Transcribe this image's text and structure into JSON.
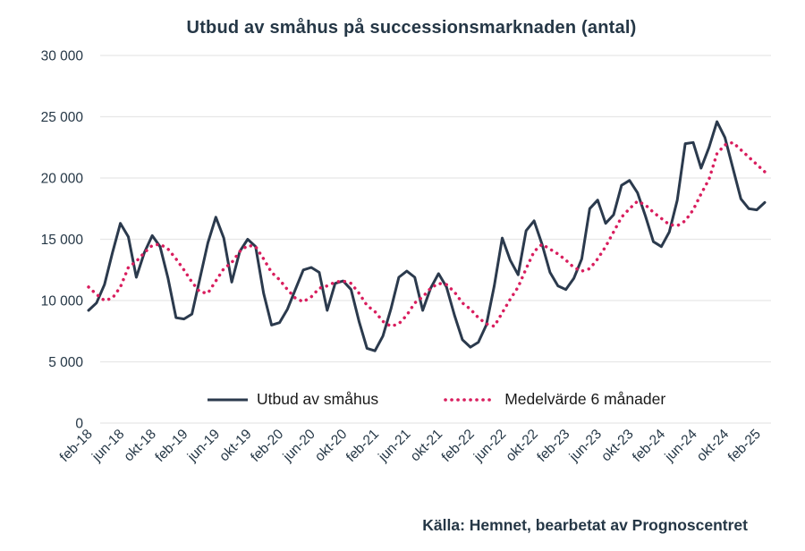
{
  "title": "Utbud av småhus på successionsmarknaden (antal)",
  "source": "Källa: Hemnet, bearbetat av Prognoscentret",
  "colors": {
    "line": "#2b3a4d",
    "average": "#d91e5e",
    "grid": "#e7e7e7",
    "axis_text": "#253746",
    "legend_text": "#1a1a1a",
    "background": "#ffffff"
  },
  "legend": {
    "items": [
      {
        "label": "Utbud av småhus",
        "marker": "solid-line"
      },
      {
        "label": "Medelvärde 6 månader",
        "marker": "dotted-line"
      }
    ]
  },
  "chart_data": {
    "type": "line",
    "title": "Utbud av småhus på successionsmarknaden (antal)",
    "xlabel": "",
    "ylabel": "",
    "ylim": [
      0,
      30000
    ],
    "grid": "horizontal",
    "legend_position": "bottom",
    "x_tick_every": 4,
    "x_tick_labels": [
      "feb-18",
      "jun-18",
      "okt-18",
      "feb-19",
      "jun-19",
      "okt-19",
      "feb-20",
      "jun-20",
      "okt-20",
      "feb-21",
      "jun-21",
      "okt-21",
      "feb-22",
      "jun-22",
      "okt-22",
      "feb-23",
      "jun-23",
      "okt-23",
      "feb-24",
      "jun-24",
      "okt-24",
      "feb-25"
    ],
    "y_ticks": [
      0,
      5000,
      10000,
      15000,
      20000,
      25000,
      30000
    ],
    "y_tick_labels": [
      "0",
      "5 000",
      "10 000",
      "15 000",
      "20 000",
      "25 000",
      "30 000"
    ],
    "months": [
      "feb-18",
      "mar-18",
      "apr-18",
      "maj-18",
      "jun-18",
      "jul-18",
      "aug-18",
      "sep-18",
      "okt-18",
      "nov-18",
      "dec-18",
      "jan-19",
      "feb-19",
      "mar-19",
      "apr-19",
      "maj-19",
      "jun-19",
      "jul-19",
      "aug-19",
      "sep-19",
      "okt-19",
      "nov-19",
      "dec-19",
      "jan-20",
      "feb-20",
      "mar-20",
      "apr-20",
      "maj-20",
      "jun-20",
      "jul-20",
      "aug-20",
      "sep-20",
      "okt-20",
      "nov-20",
      "dec-20",
      "jan-21",
      "feb-21",
      "mar-21",
      "apr-21",
      "maj-21",
      "jun-21",
      "jul-21",
      "aug-21",
      "sep-21",
      "okt-21",
      "nov-21",
      "dec-21",
      "jan-22",
      "feb-22",
      "mar-22",
      "apr-22",
      "maj-22",
      "jun-22",
      "jul-22",
      "aug-22",
      "sep-22",
      "okt-22",
      "nov-22",
      "dec-22",
      "jan-23",
      "feb-23",
      "mar-23",
      "apr-23",
      "maj-23",
      "jun-23",
      "jul-23",
      "aug-23",
      "sep-23",
      "okt-23",
      "nov-23",
      "dec-23",
      "jan-24",
      "feb-24",
      "mar-24",
      "apr-24",
      "maj-24",
      "jun-24",
      "jul-24",
      "aug-24",
      "sep-24",
      "okt-24",
      "nov-24",
      "dec-24",
      "jan-25",
      "feb-25",
      "mar-25"
    ],
    "series": [
      {
        "name": "Utbud av småhus",
        "style": "solid",
        "color": "#2b3a4d",
        "values": [
          9200,
          9800,
          11300,
          13900,
          16300,
          15200,
          11900,
          13900,
          15300,
          14400,
          11800,
          8600,
          8500,
          8900,
          11800,
          14700,
          16800,
          15100,
          11500,
          14000,
          15000,
          14400,
          10600,
          8000,
          8200,
          9300,
          10900,
          12500,
          12700,
          12300,
          9200,
          11400,
          11600,
          10900,
          8300,
          6100,
          5900,
          7100,
          9300,
          11900,
          12400,
          11900,
          9200,
          11000,
          12200,
          11100,
          8800,
          6800,
          6200,
          6600,
          8000,
          11200,
          15100,
          13300,
          12100,
          15700,
          16500,
          14600,
          12300,
          11200,
          10900,
          11800,
          13400,
          17500,
          18200,
          16300,
          17000,
          19400,
          19800,
          18800,
          16900,
          14800,
          14400,
          15600,
          18200,
          22800,
          22900,
          20800,
          22500,
          24600,
          23300,
          20800,
          18300,
          17500,
          17400,
          18000
        ]
      },
      {
        "name": "Medelvärde 6 månader",
        "style": "dotted",
        "color": "#d91e5e",
        "values": [
          11100,
          10500,
          10000,
          10200,
          11100,
          12700,
          13200,
          13900,
          14500,
          14600,
          14200,
          13400,
          12500,
          11500,
          10700,
          10600,
          11600,
          12600,
          13100,
          14000,
          14500,
          14400,
          13400,
          12300,
          11700,
          10900,
          10200,
          9900,
          10300,
          11000,
          11200,
          11500,
          11600,
          11400,
          10600,
          9600,
          9100,
          8300,
          7900,
          8100,
          8800,
          9800,
          10300,
          11000,
          11400,
          11300,
          10700,
          9800,
          9300,
          8600,
          8100,
          7900,
          9000,
          10100,
          11100,
          12600,
          14000,
          14600,
          14200,
          13800,
          13300,
          12700,
          12400,
          12600,
          13400,
          14400,
          15600,
          16800,
          17500,
          18100,
          17800,
          17200,
          16700,
          16200,
          16100,
          16500,
          17400,
          18700,
          19900,
          22000,
          22700,
          22900,
          22300,
          21700,
          21100,
          20500
        ]
      }
    ]
  }
}
